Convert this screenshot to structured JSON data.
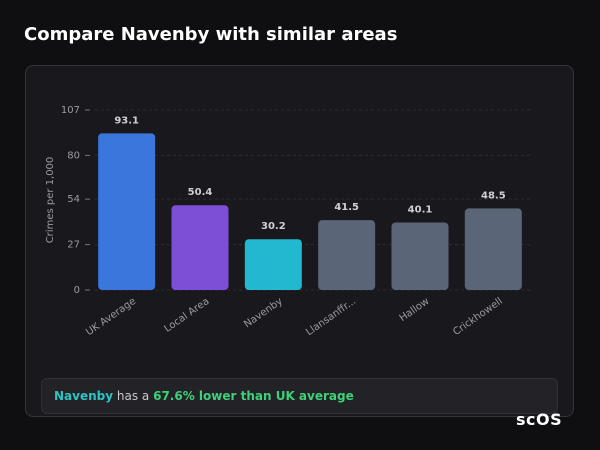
{
  "title": "Compare Navenby with similar areas",
  "chart_data": {
    "type": "bar",
    "y_label": "Crimes per 1,000",
    "categories": [
      "UK Average",
      "Local Area",
      "Navenby",
      "Llansanffr...",
      "Hallow",
      "Crickhowell"
    ],
    "values": [
      93.1,
      50.4,
      30.2,
      41.5,
      40.1,
      48.5
    ],
    "colors": [
      "#3b76dc",
      "#7c4fd6",
      "#22b8cf",
      "#5a6577",
      "#5a6577",
      "#5a6577"
    ],
    "ylim": [
      0,
      107
    ],
    "yticks": [
      0,
      27,
      54,
      80,
      107
    ],
    "grid": true
  },
  "summary": {
    "area": "Navenby",
    "text": "has a",
    "comparison": "67.6% lower than UK average"
  },
  "logo": "scOS"
}
